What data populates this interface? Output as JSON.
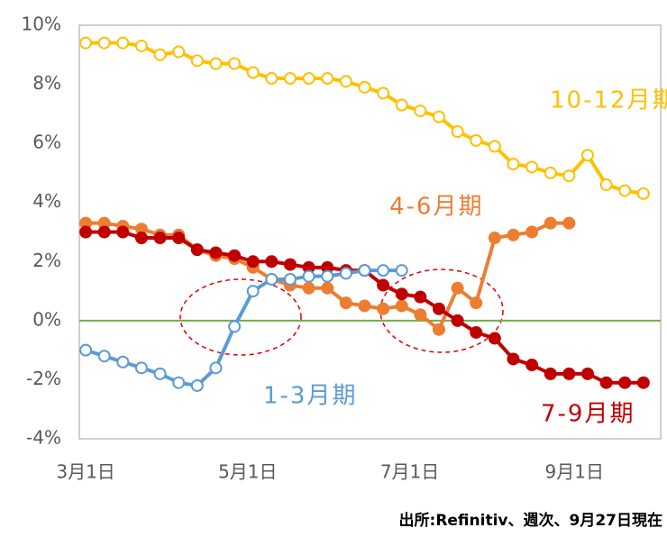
{
  "chart_data": {
    "type": "line",
    "x": [
      0,
      7,
      14,
      21,
      28,
      35,
      42,
      49,
      56,
      63,
      70,
      77,
      84,
      91,
      98,
      105,
      112,
      119,
      126,
      133,
      140,
      147,
      154,
      161,
      168,
      175,
      182,
      189,
      196,
      203,
      210
    ],
    "xlim": [
      -2.4,
      216.5
    ],
    "xticks": [
      {
        "value": 0,
        "label": "3月1日"
      },
      {
        "value": 61,
        "label": "5月1日"
      },
      {
        "value": 122,
        "label": "7月1日"
      },
      {
        "value": 184,
        "label": "9月1日"
      }
    ],
    "ylim": [
      -4,
      10
    ],
    "yticks": [
      {
        "value": -4,
        "label": "-4%"
      },
      {
        "value": -2,
        "label": "-2%"
      },
      {
        "value": 0,
        "label": "0%"
      },
      {
        "value": 2,
        "label": "2%"
      },
      {
        "value": 4,
        "label": "4%"
      },
      {
        "value": 6,
        "label": "6%"
      },
      {
        "value": 8,
        "label": "8%"
      },
      {
        "value": 10,
        "label": "10%"
      }
    ],
    "reference_line": {
      "value": 0,
      "color": "#70ad47"
    },
    "series": [
      {
        "name": "10-12月期",
        "color": "#ffc000",
        "marker": "open",
        "values": [
          9.4,
          9.4,
          9.4,
          9.3,
          9.0,
          9.1,
          8.8,
          8.7,
          8.7,
          8.4,
          8.2,
          8.2,
          8.2,
          8.2,
          8.1,
          7.9,
          7.7,
          7.3,
          7.1,
          6.9,
          6.4,
          6.1,
          5.9,
          5.3,
          5.2,
          5.0,
          4.9,
          5.6,
          4.6,
          4.4,
          4.3
        ]
      },
      {
        "name": "4-6月期",
        "color": "#ed7d31",
        "marker": "filled",
        "values": [
          3.3,
          3.3,
          3.2,
          3.1,
          2.9,
          2.9,
          2.4,
          2.2,
          2.1,
          1.8,
          1.4,
          1.2,
          1.1,
          1.1,
          0.6,
          0.5,
          0.4,
          0.5,
          0.2,
          -0.3,
          1.1,
          0.6,
          2.8,
          2.9,
          3.0,
          3.3,
          3.3,
          null,
          null,
          null,
          null
        ]
      },
      {
        "name": "7-9月期",
        "color": "#c00000",
        "marker": "filled",
        "values": [
          3.0,
          3.0,
          3.0,
          2.8,
          2.8,
          2.8,
          2.4,
          2.3,
          2.2,
          2.0,
          2.0,
          1.9,
          1.8,
          1.8,
          1.7,
          1.7,
          1.2,
          0.9,
          0.8,
          0.4,
          0.0,
          -0.4,
          -0.6,
          -1.3,
          -1.5,
          -1.8,
          -1.8,
          -1.8,
          -2.1,
          -2.1,
          -2.1
        ]
      },
      {
        "name": "1-3月期",
        "color": "#5b9bd5",
        "marker": "open",
        "values": [
          -1.0,
          -1.2,
          -1.4,
          -1.6,
          -1.8,
          -2.1,
          -2.2,
          -1.6,
          -0.2,
          1.0,
          1.4,
          1.4,
          1.5,
          1.5,
          1.6,
          1.7,
          1.7,
          1.7,
          null,
          null,
          null,
          null,
          null,
          null,
          null,
          null,
          null,
          null,
          null,
          null,
          null
        ]
      }
    ],
    "source": "出所:Refinitiv、週次、9月27日現在"
  }
}
